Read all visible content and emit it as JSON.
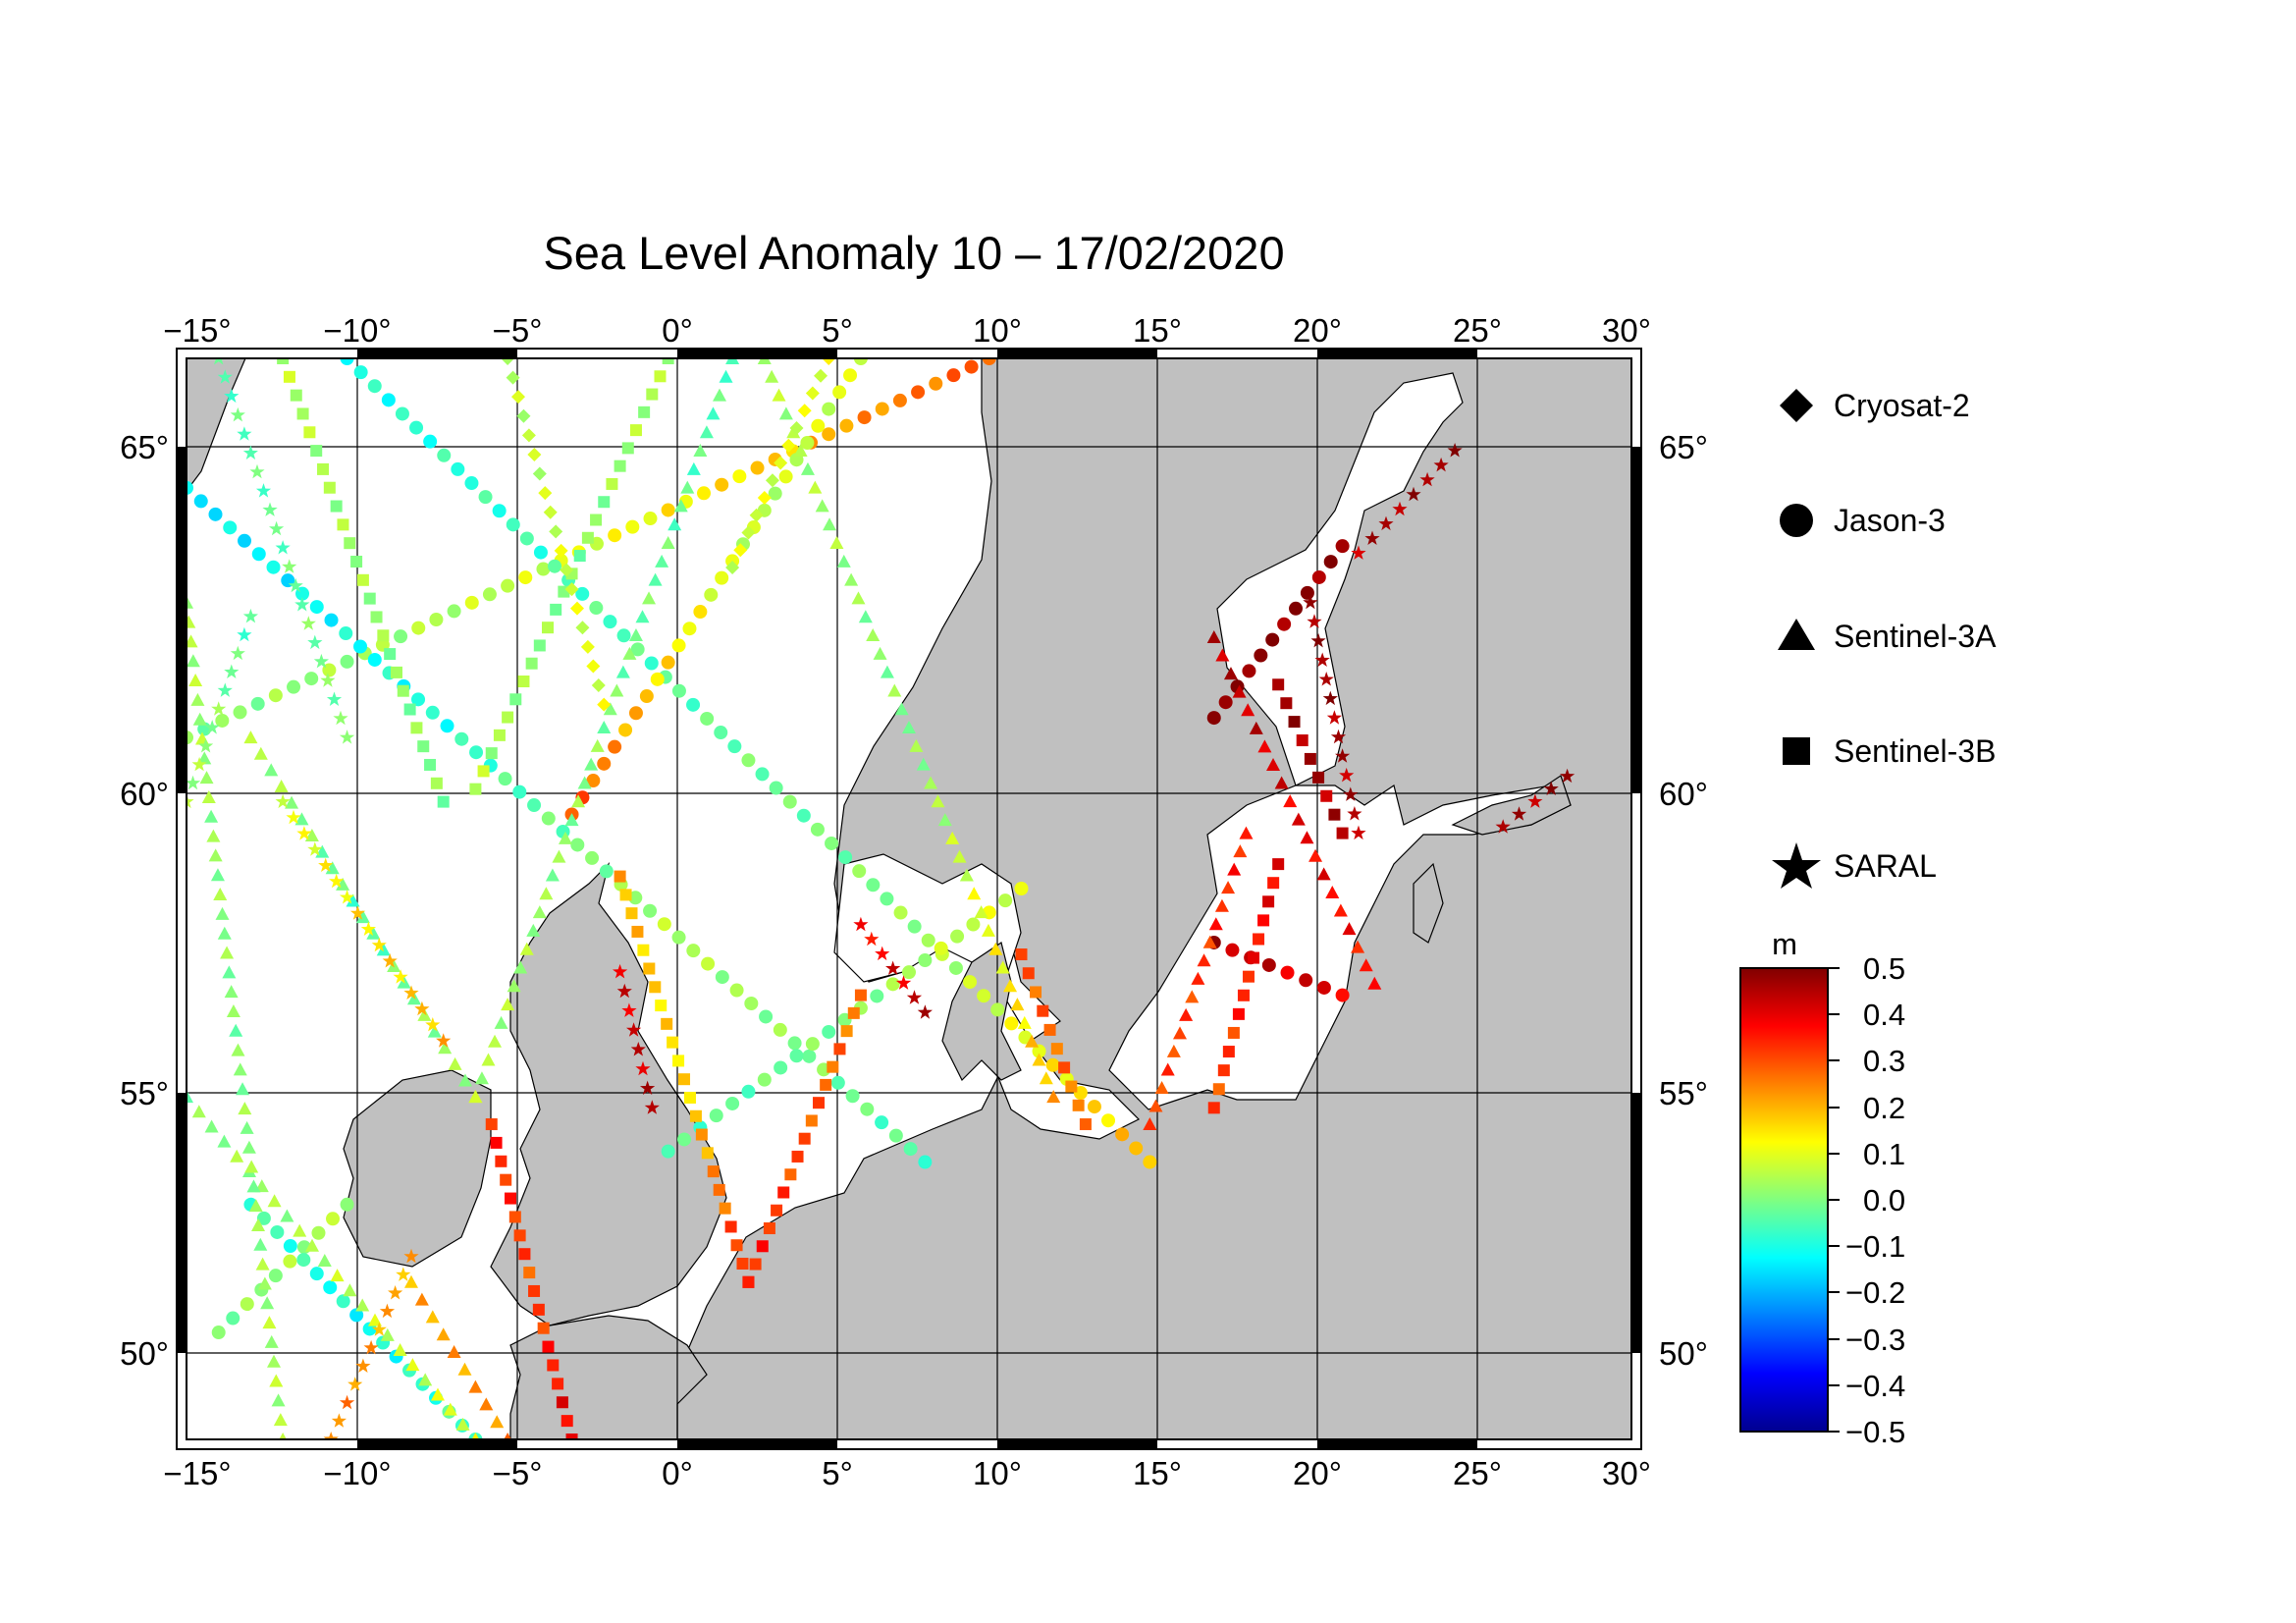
{
  "title": "Sea Level Anomaly 10 – 17/02/2020",
  "map": {
    "lon_range": [
      -15,
      30
    ],
    "lat_range": [
      48.3,
      66.3
    ],
    "projection": "mercator",
    "grid": true,
    "land_color": "#c0c0c0",
    "sea_color": "#ffffff",
    "lon_ticks": [
      {
        "value": -15,
        "label": "−15°"
      },
      {
        "value": -10,
        "label": "−10°"
      },
      {
        "value": -5,
        "label": "−5°"
      },
      {
        "value": 0,
        "label": "0°"
      },
      {
        "value": 5,
        "label": "5°"
      },
      {
        "value": 10,
        "label": "10°"
      },
      {
        "value": 15,
        "label": "15°"
      },
      {
        "value": 20,
        "label": "20°"
      },
      {
        "value": 25,
        "label": "25°"
      },
      {
        "value": 30,
        "label": "30°"
      }
    ],
    "lat_ticks": [
      {
        "value": 50,
        "label": "50°"
      },
      {
        "value": 55,
        "label": "55°"
      },
      {
        "value": 60,
        "label": "60°"
      },
      {
        "value": 65,
        "label": "65°"
      }
    ]
  },
  "legend": {
    "items": [
      {
        "label": "Cryosat-2",
        "icon": "diamond-icon"
      },
      {
        "label": "Jason-3",
        "icon": "circle-icon"
      },
      {
        "label": "Sentinel-3A",
        "icon": "triangle-icon"
      },
      {
        "label": "Sentinel-3B",
        "icon": "square-icon"
      },
      {
        "label": "SARAL",
        "icon": "star-icon"
      }
    ]
  },
  "colorbar": {
    "unit": "m",
    "range": [
      -0.5,
      0.5
    ],
    "tick_labels": [
      "0.5",
      "0.4",
      "0.3",
      "0.2",
      "0.1",
      "0.0",
      "−0.1",
      "−0.2",
      "−0.3",
      "−0.4",
      "−0.5"
    ],
    "colors": [
      "#00008f",
      "#0000ff",
      "#0080ff",
      "#00ffff",
      "#80ff80",
      "#ffff00",
      "#ff8000",
      "#ff0000",
      "#800000"
    ]
  },
  "tracks": [
    {
      "satellite": "Jason-3",
      "symbol": "circle",
      "from": [
        -15,
        61.0
      ],
      "to": [
        10,
        66.3
      ],
      "values": [
        0.0,
        0.05,
        0.15,
        0.3
      ]
    },
    {
      "satellite": "Jason-3",
      "symbol": "circle",
      "from": [
        -10,
        66.3
      ],
      "to": [
        15,
        53.8
      ],
      "values": [
        -0.1,
        -0.05,
        0.0,
        0.2
      ]
    },
    {
      "satellite": "Jason-3",
      "symbol": "circle",
      "from": [
        -3,
        59.8
      ],
      "to": [
        6,
        66.3
      ],
      "values": [
        0.3,
        0.15,
        0.05,
        0.1
      ]
    },
    {
      "satellite": "Jason-3",
      "symbol": "circle",
      "from": [
        -15,
        64.6
      ],
      "to": [
        8,
        53.8
      ],
      "values": [
        -0.15,
        -0.1,
        0.05,
        -0.05
      ]
    },
    {
      "satellite": "Jason-3",
      "symbol": "circle",
      "from": [
        -14,
        50.5
      ],
      "to": [
        -10,
        53.0
      ],
      "values": [
        0.0,
        0.05
      ]
    },
    {
      "satellite": "Jason-3",
      "symbol": "circle",
      "from": [
        -13,
        53.0
      ],
      "to": [
        -6,
        48.3
      ],
      "values": [
        -0.05,
        -0.12,
        -0.05
      ]
    },
    {
      "satellite": "Jason-3",
      "symbol": "circle",
      "from": [
        0,
        54.0
      ],
      "to": [
        11,
        58.6
      ],
      "values": [
        -0.05,
        0.0,
        0.1
      ]
    },
    {
      "satellite": "Jason-3",
      "symbol": "circle",
      "from": [
        17,
        57.7
      ],
      "to": [
        21,
        56.8
      ],
      "values": [
        0.45,
        0.4
      ]
    },
    {
      "satellite": "Jason-3",
      "symbol": "circle",
      "from": [
        17,
        61.3
      ],
      "to": [
        21,
        63.8
      ],
      "values": [
        0.5,
        0.48
      ]
    },
    {
      "satellite": "Sentinel-3A",
      "symbol": "triangle",
      "from": [
        -15,
        55.0
      ],
      "to": [
        -6,
        48.3
      ],
      "values": [
        0.0,
        0.05,
        0.1
      ]
    },
    {
      "satellite": "Sentinel-3A",
      "symbol": "triangle",
      "from": [
        -13,
        61.0
      ],
      "to": [
        -6,
        55.0
      ],
      "values": [
        0.05,
        -0.05,
        0.05
      ]
    },
    {
      "satellite": "Sentinel-3A",
      "symbol": "triangle",
      "from": [
        -6,
        55.0
      ],
      "to": [
        2,
        66.3
      ],
      "values": [
        0.05,
        0.0,
        -0.05
      ]
    },
    {
      "satellite": "Sentinel-3A",
      "symbol": "triangle",
      "from": [
        3,
        66.3
      ],
      "to": [
        12,
        55.0
      ],
      "values": [
        0.05,
        0.0,
        0.2
      ]
    },
    {
      "satellite": "Sentinel-3A",
      "symbol": "triangle",
      "from": [
        -8,
        51.5
      ],
      "to": [
        -5,
        48.3
      ],
      "values": [
        0.2,
        0.25
      ]
    },
    {
      "satellite": "Sentinel-3A",
      "symbol": "triangle",
      "from": [
        15,
        54.5
      ],
      "to": [
        18,
        59.5
      ],
      "values": [
        0.3,
        0.35
      ]
    },
    {
      "satellite": "Sentinel-3A",
      "symbol": "triangle",
      "from": [
        17,
        62.5
      ],
      "to": [
        22,
        57.0
      ],
      "values": [
        0.45,
        0.4,
        0.35
      ]
    },
    {
      "satellite": "Sentinel-3A",
      "symbol": "triangle",
      "from": [
        -15,
        63.0
      ],
      "to": [
        -12,
        48.3
      ],
      "values": [
        0.05,
        0.0,
        0.05
      ]
    },
    {
      "satellite": "Sentinel-3B",
      "symbol": "square",
      "from": [
        -6,
        60.2
      ],
      "to": [
        0,
        66.3
      ],
      "values": [
        0.05,
        0.0,
        0.05
      ]
    },
    {
      "satellite": "Sentinel-3B",
      "symbol": "square",
      "from": [
        -1.5,
        58.8
      ],
      "to": [
        2.5,
        51.5
      ],
      "values": [
        0.2,
        0.15,
        0.35
      ]
    },
    {
      "satellite": "Sentinel-3B",
      "symbol": "square",
      "from": [
        2.5,
        51.5
      ],
      "to": [
        6,
        56.8
      ],
      "values": [
        0.35,
        0.3,
        0.25
      ]
    },
    {
      "satellite": "Sentinel-3B",
      "symbol": "square",
      "from": [
        -5.5,
        54.5
      ],
      "to": [
        -3,
        48.3
      ],
      "values": [
        0.35,
        0.3,
        0.4
      ]
    },
    {
      "satellite": "Sentinel-3B",
      "symbol": "square",
      "from": [
        11,
        57.5
      ],
      "to": [
        13,
        54.5
      ],
      "values": [
        0.3,
        0.25
      ]
    },
    {
      "satellite": "Sentinel-3B",
      "symbol": "square",
      "from": [
        17,
        54.8
      ],
      "to": [
        19,
        59.0
      ],
      "values": [
        0.3,
        0.4
      ]
    },
    {
      "satellite": "Sentinel-3B",
      "symbol": "square",
      "from": [
        19,
        61.8
      ],
      "to": [
        21,
        59.5
      ],
      "values": [
        0.48,
        0.45
      ]
    },
    {
      "satellite": "Sentinel-3B",
      "symbol": "square",
      "from": [
        -12,
        66.3
      ],
      "to": [
        -7,
        60.0
      ],
      "values": [
        0.05,
        0.0
      ]
    },
    {
      "satellite": "SARAL",
      "symbol": "star",
      "from": [
        -14,
        66.3
      ],
      "to": [
        -10,
        61.0
      ],
      "values": [
        -0.05,
        0.0
      ]
    },
    {
      "satellite": "SARAL",
      "symbol": "star",
      "from": [
        -13,
        62.8
      ],
      "to": [
        -15,
        60.0
      ],
      "values": [
        -0.05,
        0.05
      ]
    },
    {
      "satellite": "SARAL",
      "symbol": "star",
      "from": [
        -12,
        60.0
      ],
      "to": [
        -7,
        56.0
      ],
      "values": [
        0.1,
        0.2
      ]
    },
    {
      "satellite": "SARAL",
      "symbol": "star",
      "from": [
        -1.5,
        57.2
      ],
      "to": [
        -0.5,
        54.8
      ],
      "values": [
        0.4,
        0.45
      ]
    },
    {
      "satellite": "SARAL",
      "symbol": "star",
      "from": [
        6,
        58.0
      ],
      "to": [
        8,
        56.5
      ],
      "values": [
        0.35,
        0.45
      ]
    },
    {
      "satellite": "SARAL",
      "symbol": "star",
      "from": [
        20,
        63.0
      ],
      "to": [
        21.5,
        59.5
      ],
      "values": [
        0.48,
        0.45
      ]
    },
    {
      "satellite": "SARAL",
      "symbol": "star",
      "from": [
        21.5,
        63.7
      ],
      "to": [
        24.5,
        65.1
      ],
      "values": [
        0.45,
        0.48
      ]
    },
    {
      "satellite": "SARAL",
      "symbol": "star",
      "from": [
        26,
        59.6
      ],
      "to": [
        28,
        60.4
      ],
      "values": [
        0.45,
        0.48
      ]
    },
    {
      "satellite": "SARAL",
      "symbol": "star",
      "from": [
        -8,
        52.0
      ],
      "to": [
        -10.5,
        48.3
      ],
      "values": [
        0.2,
        0.25
      ]
    },
    {
      "satellite": "Cryosat-2",
      "symbol": "diamond",
      "from": [
        -5,
        66.3
      ],
      "to": [
        -2,
        61.5
      ],
      "values": [
        0.05,
        0.1
      ]
    },
    {
      "satellite": "Cryosat-2",
      "symbol": "diamond",
      "from": [
        2,
        63.5
      ],
      "to": [
        5,
        66.3
      ],
      "values": [
        0.08,
        0.1
      ]
    }
  ]
}
